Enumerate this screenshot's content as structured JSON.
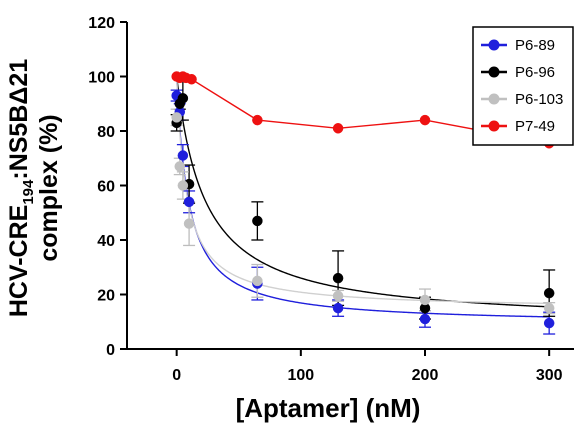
{
  "chart_data": {
    "type": "scatter",
    "title": "",
    "xlabel": "[Aptamer] (nM)",
    "ylabel_line1_main": "HCV-CRE",
    "ylabel_line1_sub": "194",
    "ylabel_line1_tail": ":NS5BΔ21",
    "ylabel_line2": "complex (%)",
    "xlim": [
      -40,
      320
    ],
    "ylim": [
      0,
      120
    ],
    "x_ticks": [
      0,
      100,
      200,
      300
    ],
    "y_ticks": [
      0,
      20,
      40,
      60,
      80,
      100,
      120
    ],
    "grid": false,
    "legend_position": "top-right",
    "series": [
      {
        "name": "P6-89",
        "color": "#1f1fdc",
        "marker": "circle",
        "line": "fit",
        "fit": {
          "min": 9.0,
          "max": 100,
          "ic50": 9.5
        },
        "points": [
          {
            "x": 0,
            "y": 93,
            "err": 2
          },
          {
            "x": 2.5,
            "y": 87,
            "err": 3
          },
          {
            "x": 5,
            "y": 71,
            "err": 4
          },
          {
            "x": 10,
            "y": 54,
            "err": 4
          },
          {
            "x": 65,
            "y": 24,
            "err": 6
          },
          {
            "x": 130,
            "y": 15,
            "err": 3
          },
          {
            "x": 200,
            "y": 11,
            "err": 3
          },
          {
            "x": 300,
            "y": 9.5,
            "err": 4
          }
        ]
      },
      {
        "name": "P6-96",
        "color": "#000000",
        "marker": "circle",
        "line": "fit",
        "fit": {
          "min": 9.0,
          "max": 100,
          "ic50": 23
        },
        "points": [
          {
            "x": 0,
            "y": 83,
            "err": 3
          },
          {
            "x": 2.5,
            "y": 90,
            "err": 2
          },
          {
            "x": 5,
            "y": 92,
            "err": 8
          },
          {
            "x": 10,
            "y": 60.5,
            "err": 7
          },
          {
            "x": 65,
            "y": 47,
            "err": 7
          },
          {
            "x": 130,
            "y": 26,
            "err": 10
          },
          {
            "x": 200,
            "y": 15,
            "err": 4
          },
          {
            "x": 300,
            "y": 20.5,
            "err": 8.5
          }
        ]
      },
      {
        "name": "P6-103",
        "color": "#c0c0c0",
        "marker": "circle",
        "line": "fit",
        "fit": {
          "min": 14.5,
          "max": 100,
          "ic50": 8
        },
        "points": [
          {
            "x": 0,
            "y": 85,
            "err": 3
          },
          {
            "x": 2.5,
            "y": 67,
            "err": 3
          },
          {
            "x": 5,
            "y": 60,
            "err": 5
          },
          {
            "x": 10,
            "y": 46,
            "err": 8
          },
          {
            "x": 65,
            "y": 25,
            "err": 6
          },
          {
            "x": 130,
            "y": 19.5,
            "err": 2
          },
          {
            "x": 200,
            "y": 18,
            "err": 4
          },
          {
            "x": 300,
            "y": 15,
            "err": 2
          }
        ]
      },
      {
        "name": "P7-49",
        "color": "#ee1111",
        "marker": "circle",
        "line": "connect",
        "points": [
          {
            "x": 0,
            "y": 100
          },
          {
            "x": 2.5,
            "y": 99.5
          },
          {
            "x": 5,
            "y": 100
          },
          {
            "x": 7.5,
            "y": 99.5
          },
          {
            "x": 12,
            "y": 99
          },
          {
            "x": 65,
            "y": 84
          },
          {
            "x": 130,
            "y": 81
          },
          {
            "x": 200,
            "y": 84
          },
          {
            "x": 300,
            "y": 75.5
          }
        ]
      }
    ]
  }
}
